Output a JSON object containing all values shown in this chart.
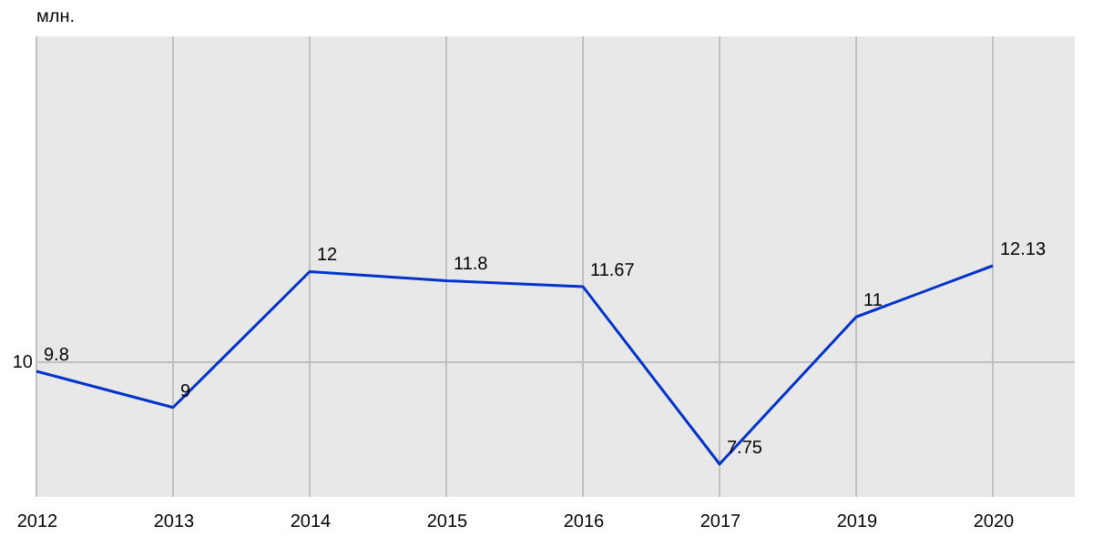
{
  "chart_data": {
    "type": "line",
    "annotations": [
      "млн."
    ],
    "categories": [
      "2012",
      "2013",
      "2014",
      "2015",
      "2016",
      "2017",
      "2019",
      "2020"
    ],
    "series": [
      {
        "color": "#0033cc",
        "values": [
          9.8,
          9,
          12,
          11.8,
          11.67,
          7.75,
          11,
          12.13
        ]
      }
    ],
    "ref_lines": [
      {
        "axis": "y",
        "value": 10,
        "label": "10",
        "color": "#c0c0c0"
      }
    ],
    "grid": "x",
    "data_labels": true,
    "marker": "none",
    "line_style": "solid"
  }
}
